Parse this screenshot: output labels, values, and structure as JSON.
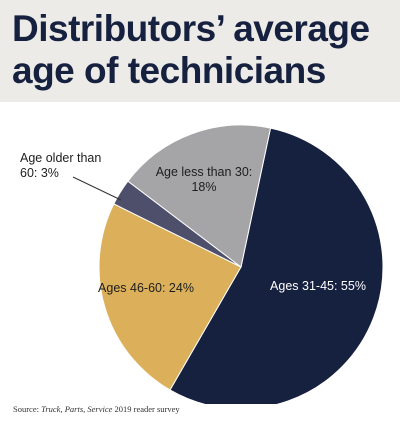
{
  "chart_data": {
    "type": "pie",
    "title_lines": [
      "Distributors’ average",
      "age of technicians"
    ],
    "slices": [
      {
        "label_lines": [
          "Ages 31-45: 55%"
        ],
        "value": 55,
        "color": "#16203f",
        "text_color": "#ffffff"
      },
      {
        "label_lines": [
          "Ages 46-60: 24%"
        ],
        "value": 24,
        "color": "#dcb05a",
        "text_color": "#1e1e1e"
      },
      {
        "label_lines": [
          "Age older than",
          "60: 3%"
        ],
        "value": 3,
        "color": "#4d4f6b",
        "text_color": "#1e1e1e"
      },
      {
        "label_lines": [
          "Age less than 30:",
          "18%"
        ],
        "value": 18,
        "color": "#a5a5a7",
        "text_color": "#1e1e1e"
      }
    ]
  },
  "source": {
    "prefix": "Source: ",
    "publication": "Truck, Parts, Service",
    "suffix": " 2019 reader survey"
  }
}
